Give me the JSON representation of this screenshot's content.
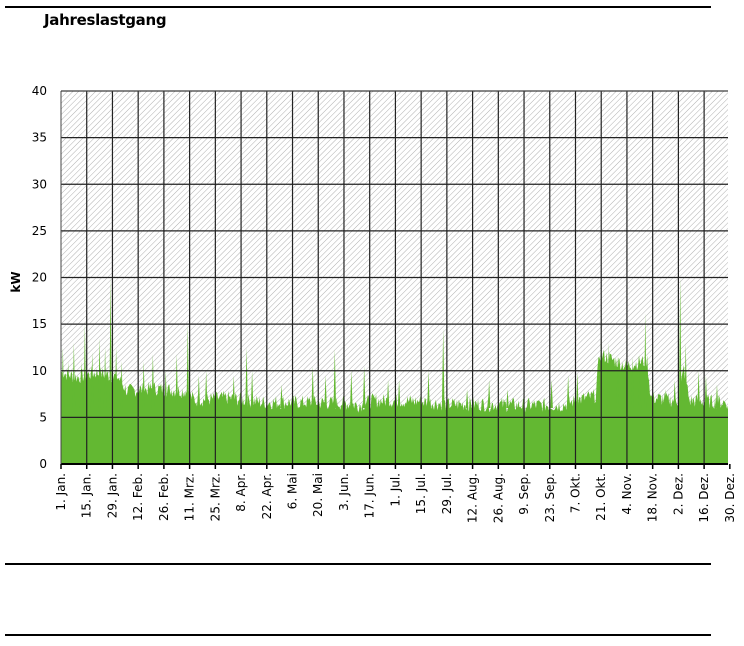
{
  "title": "Jahreslastgang",
  "chart_data": {
    "type": "area",
    "title": "Jahreslastgang",
    "ylabel": "kW",
    "xlabel": "",
    "ylim": [
      0,
      40
    ],
    "yticks": [
      0,
      5,
      10,
      15,
      20,
      25,
      30,
      35,
      40
    ],
    "xlim": [
      "01-01",
      "12-30"
    ],
    "xticks": [
      "1. Jan.",
      "15. Jan.",
      "29. Jan.",
      "12. Feb.",
      "26. Feb.",
      "11. Mrz.",
      "25. Mrz.",
      "8. Apr.",
      "22. Apr.",
      "6. Mai",
      "20. Mai",
      "3. Jun.",
      "17. Jun.",
      "1. Jul.",
      "15. Jul.",
      "29. Jul.",
      "12. Aug.",
      "26. Aug.",
      "9. Sep.",
      "23. Sep.",
      "7. Okt.",
      "21. Okt.",
      "4. Nov.",
      "18. Nov.",
      "2. Dez.",
      "16. Dez.",
      "30. Dez."
    ],
    "grid": true,
    "color": "#63b832",
    "series": [
      {
        "baseline": [
          [
            "01-01",
            9.5
          ],
          [
            "01-10",
            9
          ],
          [
            "01-20",
            9.5
          ],
          [
            "02-01",
            9
          ],
          [
            "02-06",
            7.5
          ],
          [
            "02-20",
            7.8
          ],
          [
            "03-10",
            7.5
          ],
          [
            "03-15",
            6.5
          ],
          [
            "04-01",
            6.8
          ],
          [
            "04-20",
            6.3
          ],
          [
            "05-15",
            6.3
          ],
          [
            "06-05",
            6.2
          ],
          [
            "06-12",
            6
          ],
          [
            "06-20",
            6.5
          ],
          [
            "07-15",
            6.4
          ],
          [
            "07-30",
            6.1
          ],
          [
            "08-20",
            6.1
          ],
          [
            "09-10",
            6
          ],
          [
            "10-01",
            6
          ],
          [
            "10-10",
            6.6
          ],
          [
            "10-19",
            7
          ],
          [
            "10-21",
            11.5
          ],
          [
            "11-05",
            10.2
          ],
          [
            "11-10",
            10.5
          ],
          [
            "11-16",
            10.8
          ],
          [
            "11-18",
            6.8
          ],
          [
            "12-01",
            6.5
          ],
          [
            "12-03",
            6.5
          ],
          [
            "12-06",
            10
          ],
          [
            "12-09",
            6.5
          ],
          [
            "12-30",
            6.3
          ]
        ],
        "peaks": [
          [
            "01-02",
            12.5
          ],
          [
            "01-05",
            11
          ],
          [
            "01-08",
            13
          ],
          [
            "01-12",
            11
          ],
          [
            "01-14",
            15
          ],
          [
            "01-18",
            12
          ],
          [
            "01-22",
            13.5
          ],
          [
            "01-25",
            12.5
          ],
          [
            "01-28",
            20
          ],
          [
            "01-31",
            12.5
          ],
          [
            "02-03",
            11
          ],
          [
            "02-15",
            11
          ],
          [
            "02-20",
            11.8
          ],
          [
            "02-27",
            10
          ],
          [
            "03-05",
            11.8
          ],
          [
            "03-11",
            15
          ],
          [
            "03-17",
            9.5
          ],
          [
            "03-21",
            10
          ],
          [
            "04-05",
            9.5
          ],
          [
            "04-12",
            12.5
          ],
          [
            "04-15",
            10
          ],
          [
            "05-01",
            8.5
          ],
          [
            "05-18",
            10.5
          ],
          [
            "05-25",
            9.5
          ],
          [
            "05-30",
            12.3
          ],
          [
            "06-08",
            10
          ],
          [
            "06-15",
            10.5
          ],
          [
            "06-28",
            9
          ],
          [
            "07-04",
            9
          ],
          [
            "07-20",
            10
          ],
          [
            "07-28",
            14.5
          ],
          [
            "08-10",
            8
          ],
          [
            "08-22",
            9
          ],
          [
            "09-01",
            8
          ],
          [
            "09-25",
            9
          ],
          [
            "10-04",
            9.5
          ],
          [
            "10-09",
            9.8
          ],
          [
            "10-22",
            15.3
          ],
          [
            "10-26",
            13
          ],
          [
            "10-31",
            11.5
          ],
          [
            "11-08",
            11.5
          ],
          [
            "11-12",
            11.8
          ],
          [
            "11-15",
            16.2
          ],
          [
            "11-26",
            8
          ],
          [
            "12-01",
            9
          ],
          [
            "12-04",
            20
          ],
          [
            "12-07",
            13
          ],
          [
            "12-14",
            10
          ],
          [
            "12-18",
            9.5
          ],
          [
            "12-24",
            8.5
          ]
        ]
      }
    ]
  }
}
